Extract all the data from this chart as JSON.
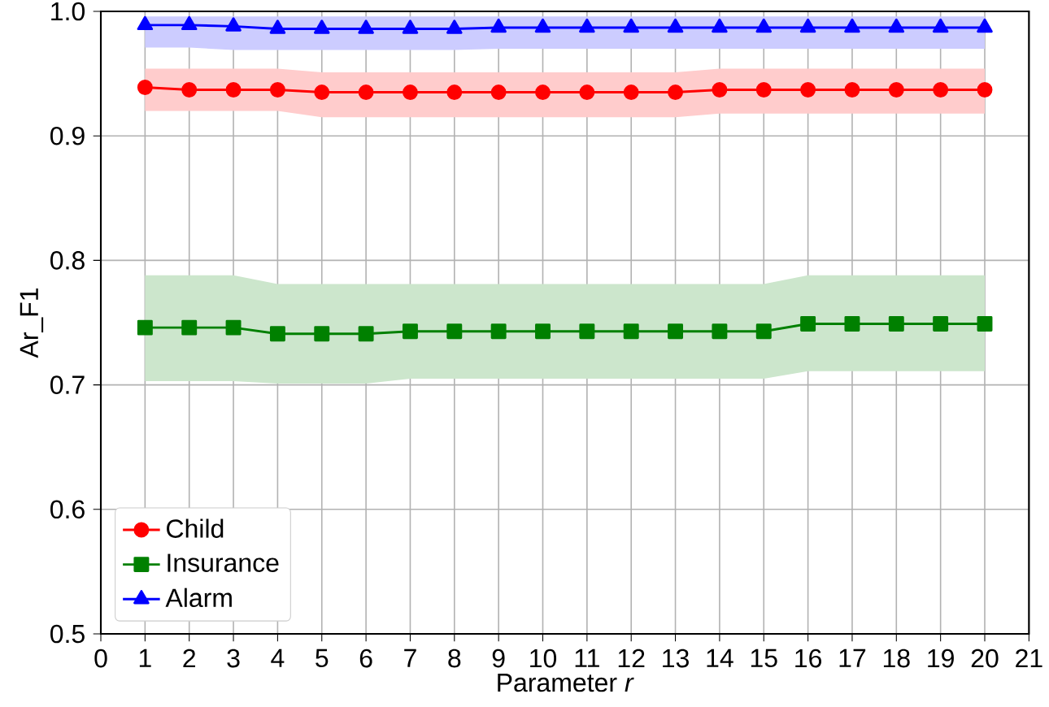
{
  "chart_data": {
    "type": "line",
    "xlabel": "Parameter *r*",
    "ylabel": "Ar_F1",
    "x": [
      1,
      2,
      3,
      4,
      5,
      6,
      7,
      8,
      9,
      10,
      11,
      12,
      13,
      14,
      15,
      16,
      17,
      18,
      19,
      20
    ],
    "series": [
      {
        "name": "Child",
        "color": "#ff0000",
        "marker": "circle",
        "values": [
          0.939,
          0.937,
          0.937,
          0.937,
          0.935,
          0.935,
          0.935,
          0.935,
          0.935,
          0.935,
          0.935,
          0.935,
          0.935,
          0.937,
          0.937,
          0.937,
          0.937,
          0.937,
          0.937,
          0.937
        ],
        "lower": [
          0.92,
          0.92,
          0.92,
          0.92,
          0.915,
          0.915,
          0.915,
          0.915,
          0.915,
          0.915,
          0.915,
          0.915,
          0.915,
          0.918,
          0.918,
          0.918,
          0.918,
          0.918,
          0.918,
          0.918
        ],
        "upper": [
          0.954,
          0.954,
          0.954,
          0.954,
          0.951,
          0.951,
          0.951,
          0.951,
          0.951,
          0.951,
          0.951,
          0.951,
          0.951,
          0.954,
          0.954,
          0.954,
          0.954,
          0.954,
          0.954,
          0.954
        ]
      },
      {
        "name": "Insurance",
        "color": "#008000",
        "marker": "square",
        "values": [
          0.746,
          0.746,
          0.746,
          0.741,
          0.741,
          0.741,
          0.743,
          0.743,
          0.743,
          0.743,
          0.743,
          0.743,
          0.743,
          0.743,
          0.743,
          0.749,
          0.749,
          0.749,
          0.749,
          0.749
        ],
        "lower": [
          0.703,
          0.703,
          0.703,
          0.701,
          0.701,
          0.701,
          0.705,
          0.705,
          0.705,
          0.705,
          0.705,
          0.705,
          0.705,
          0.705,
          0.705,
          0.711,
          0.711,
          0.711,
          0.711,
          0.711
        ],
        "upper": [
          0.788,
          0.788,
          0.788,
          0.781,
          0.781,
          0.781,
          0.781,
          0.781,
          0.781,
          0.781,
          0.781,
          0.781,
          0.781,
          0.781,
          0.781,
          0.788,
          0.788,
          0.788,
          0.788,
          0.788
        ]
      },
      {
        "name": "Alarm",
        "color": "#0000ff",
        "marker": "triangle",
        "values": [
          0.989,
          0.989,
          0.988,
          0.986,
          0.986,
          0.986,
          0.986,
          0.986,
          0.987,
          0.987,
          0.987,
          0.987,
          0.987,
          0.987,
          0.987,
          0.987,
          0.987,
          0.987,
          0.987,
          0.987
        ],
        "lower": [
          0.971,
          0.971,
          0.969,
          0.969,
          0.969,
          0.969,
          0.969,
          0.969,
          0.97,
          0.97,
          0.97,
          0.97,
          0.97,
          0.97,
          0.97,
          0.97,
          0.97,
          0.97,
          0.97,
          0.97
        ],
        "upper": [
          0.996,
          0.996,
          0.996,
          0.996,
          0.996,
          0.996,
          0.996,
          0.996,
          0.996,
          0.996,
          0.996,
          0.996,
          0.996,
          0.996,
          0.996,
          0.996,
          0.996,
          0.996,
          0.996,
          0.996
        ]
      }
    ],
    "xlim": [
      0,
      21
    ],
    "xticks": [
      0,
      1,
      2,
      3,
      4,
      5,
      6,
      7,
      8,
      9,
      10,
      11,
      12,
      13,
      14,
      15,
      16,
      17,
      18,
      19,
      20,
      21
    ],
    "ylim": [
      0.5,
      1.0
    ],
    "yticks": [
      0.5,
      0.6,
      0.7,
      0.8,
      0.9,
      {
        "value": 1.0,
        "label": "1.0"
      }
    ],
    "grid": true,
    "legend": "bottom left",
    "line_style": "solid"
  }
}
